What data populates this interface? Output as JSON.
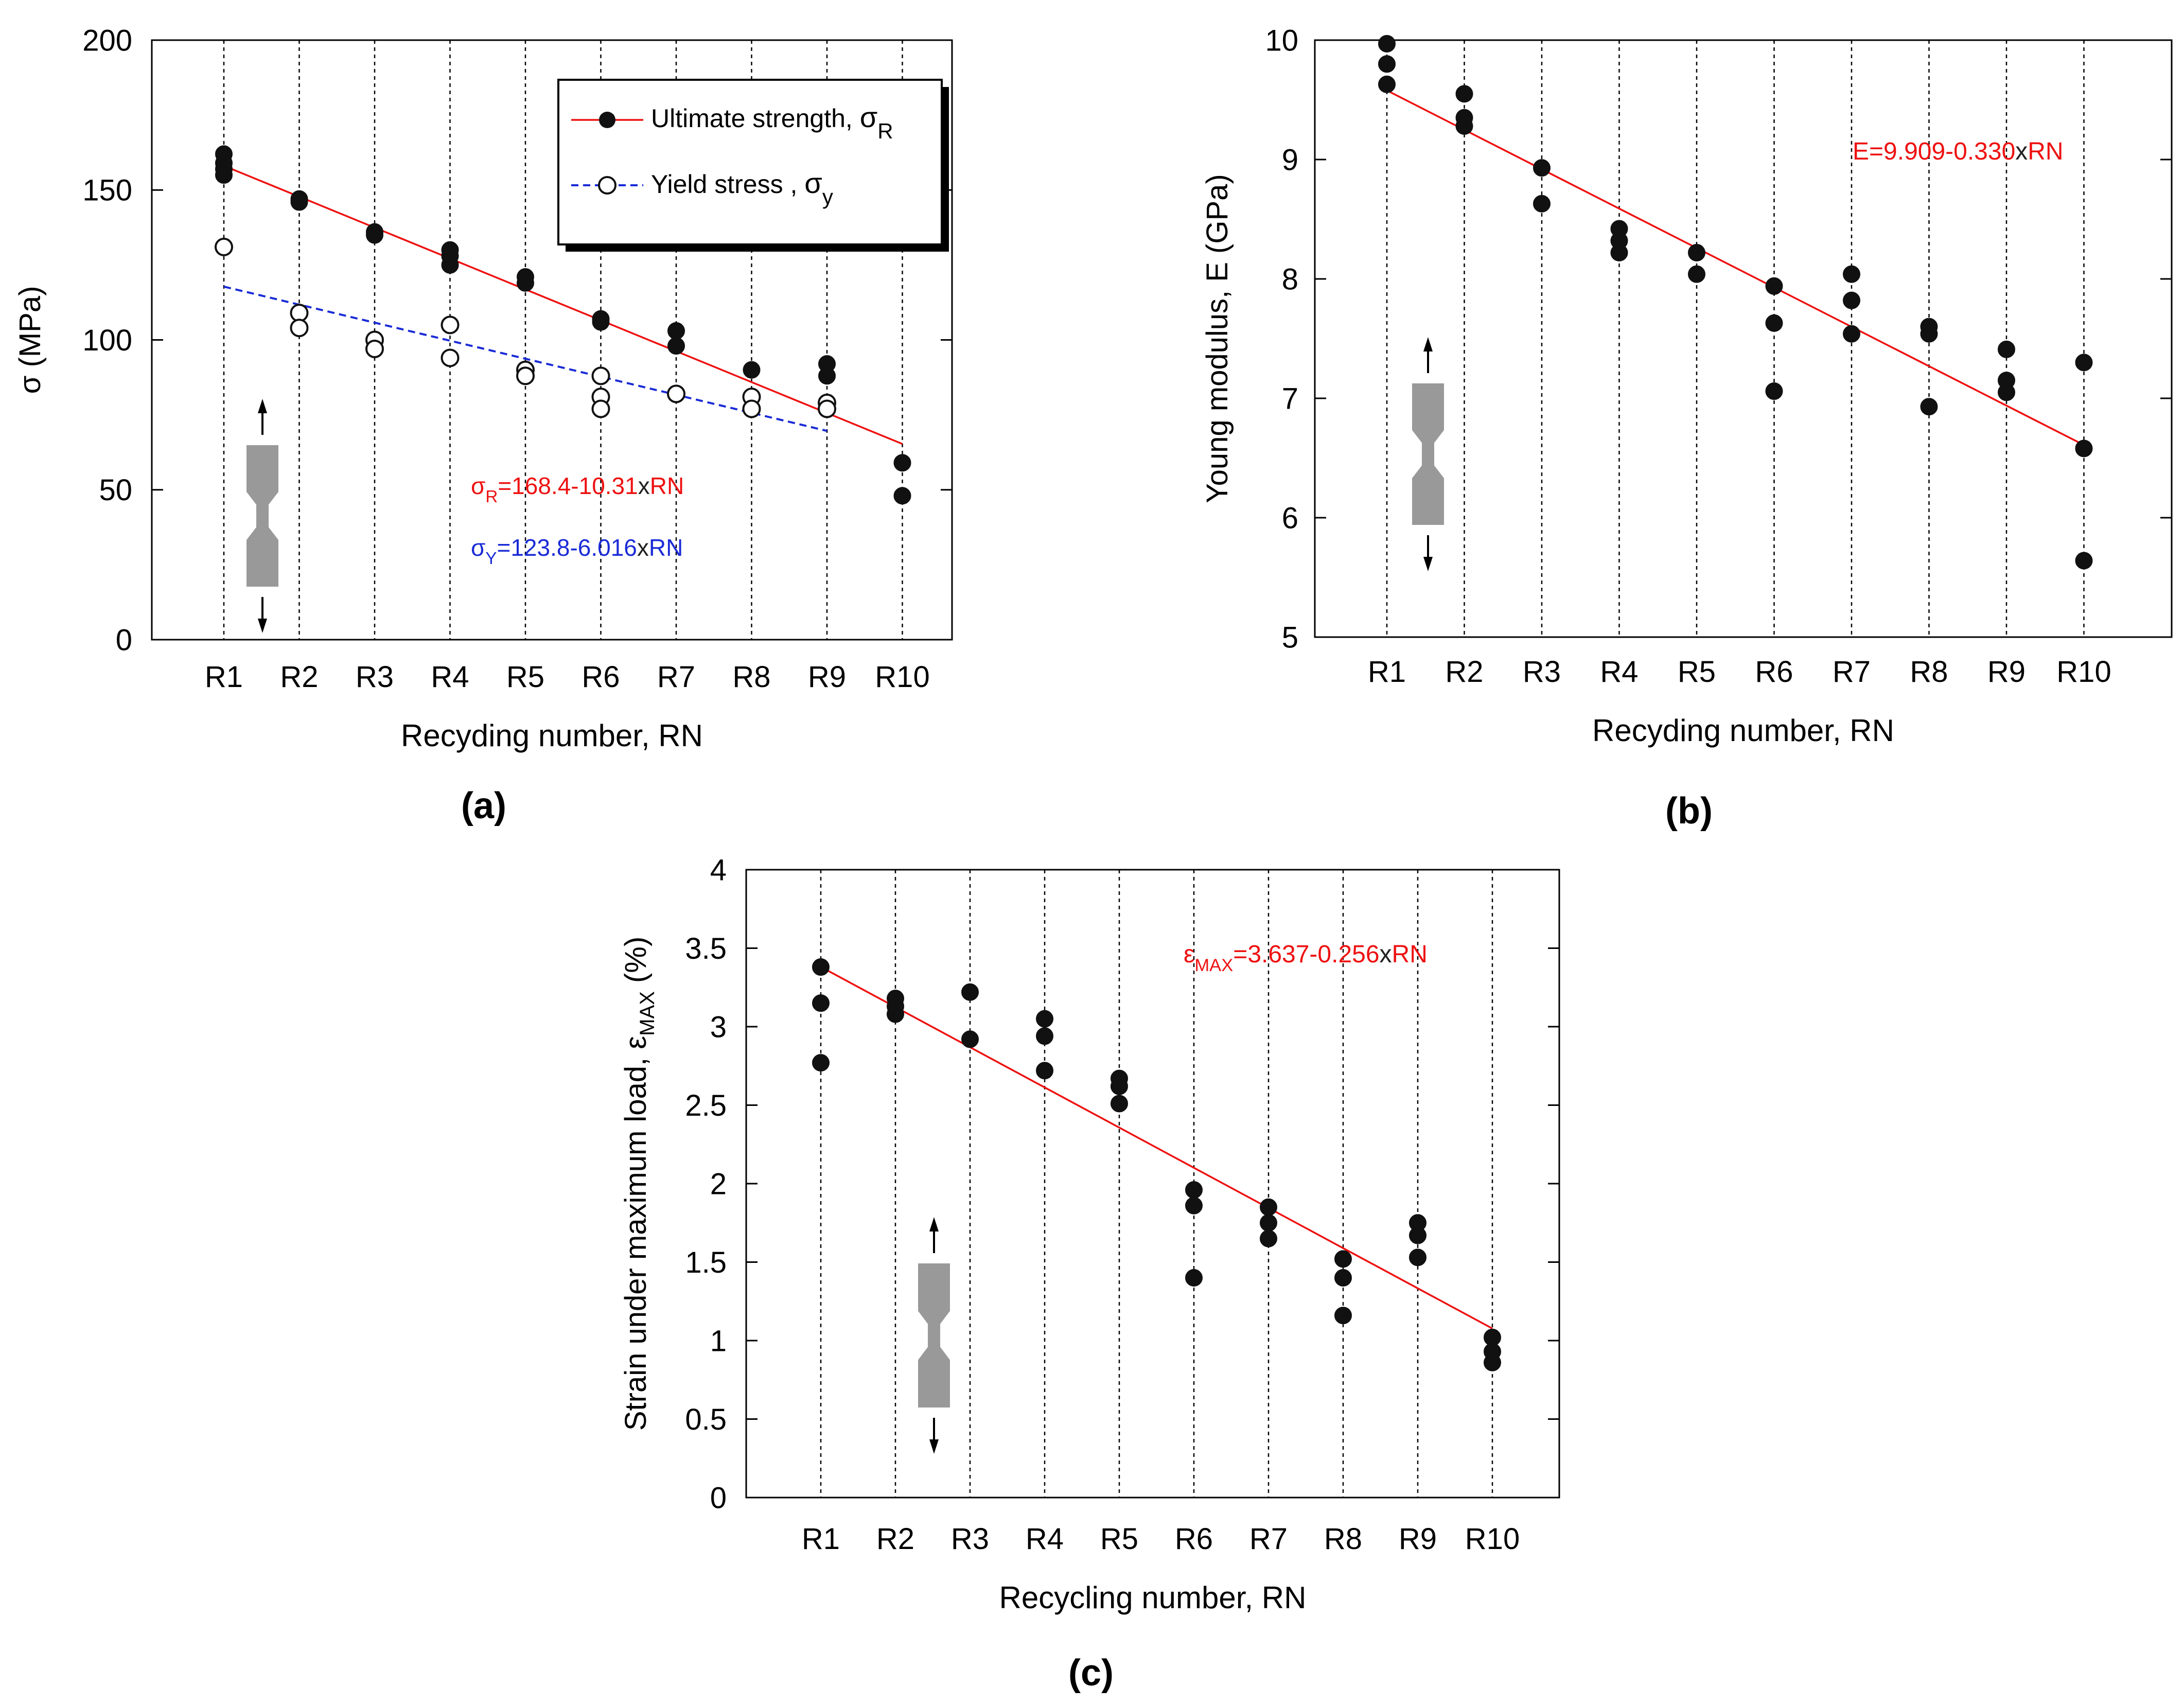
{
  "figure": {
    "colors": {
      "ultimate": "#ee1111",
      "yield": "#1a2bd6",
      "marker": "#111111",
      "specimen": "#999999"
    }
  },
  "chart_data": [
    {
      "panel": "a",
      "caption": "(a)",
      "type": "scatter",
      "categories": [
        "R1",
        "R2",
        "R3",
        "R4",
        "R5",
        "R6",
        "R7",
        "R8",
        "R9",
        "R10"
      ],
      "xlabel": "Recyding number, RN",
      "ylabel": "σ (MPa)",
      "ylim": [
        0,
        200
      ],
      "yticks": [
        0,
        50,
        100,
        150,
        200
      ],
      "grid": "vertical dotted lines at each recycling number",
      "legend": {
        "placement": "top-right",
        "entries": [
          {
            "label": "Ultimate strength,",
            "symbol": "σ",
            "sub": "R"
          },
          {
            "label": "Yield stress ,",
            "symbol": "σ",
            "sub": "y"
          }
        ]
      },
      "series": [
        {
          "name": "Ultimate strength, σR",
          "marker": "filled",
          "points": [
            [
              1,
              162
            ],
            [
              1,
              159
            ],
            [
              1,
              157
            ],
            [
              1,
              155
            ],
            [
              2,
              147
            ],
            [
              2,
              146
            ],
            [
              3,
              136
            ],
            [
              3,
              135
            ],
            [
              4,
              130
            ],
            [
              4,
              128
            ],
            [
              4,
              125
            ],
            [
              5,
              121
            ],
            [
              5,
              119
            ],
            [
              6,
              107
            ],
            [
              6,
              106
            ],
            [
              7,
              103
            ],
            [
              7,
              98
            ],
            [
              8,
              90
            ],
            [
              9,
              92
            ],
            [
              9,
              88
            ],
            [
              10,
              59
            ],
            [
              10,
              48
            ]
          ],
          "fit": {
            "intercept": 168.4,
            "slope": -10.31,
            "style": "solid"
          }
        },
        {
          "name": "Yield stress , σy",
          "marker": "open",
          "points": [
            [
              1,
              131
            ],
            [
              2,
              109
            ],
            [
              2,
              104
            ],
            [
              3,
              100
            ],
            [
              3,
              97
            ],
            [
              4,
              105
            ],
            [
              4,
              94
            ],
            [
              5,
              90
            ],
            [
              5,
              88
            ],
            [
              6,
              88
            ],
            [
              6,
              81
            ],
            [
              6,
              77
            ],
            [
              7,
              82
            ],
            [
              8,
              81
            ],
            [
              8,
              77
            ],
            [
              9,
              79
            ],
            [
              9,
              77
            ]
          ],
          "fit": {
            "intercept": 123.8,
            "slope": -6.016,
            "style": "dashed",
            "x_end": 9
          }
        }
      ],
      "annotations": [
        {
          "pre": "σ",
          "sub": "R",
          "post": "=168.4-10.31",
          "x_char": "x",
          "tail": "RN",
          "color": "red"
        },
        {
          "pre": "σ",
          "sub": "Y",
          "post": "=123.8-6.016",
          "x_char": "x",
          "tail": "RN",
          "color": "blue"
        }
      ]
    },
    {
      "panel": "b",
      "caption": "(b)",
      "type": "scatter",
      "categories": [
        "R1",
        "R2",
        "R3",
        "R4",
        "R5",
        "R6",
        "R7",
        "R8",
        "R9",
        "R10"
      ],
      "xlabel": "Recyding number, RN",
      "ylabel": "Young modulus, E (GPa)",
      "ylim": [
        5,
        10
      ],
      "yticks": [
        5,
        6,
        7,
        8,
        9,
        10
      ],
      "grid": "vertical dotted lines at each recycling number",
      "series": [
        {
          "name": "E",
          "marker": "filled",
          "points": [
            [
              1,
              9.97
            ],
            [
              1,
              9.8
            ],
            [
              1,
              9.63
            ],
            [
              2,
              9.55
            ],
            [
              2,
              9.35
            ],
            [
              2,
              9.28
            ],
            [
              3,
              8.93
            ],
            [
              3,
              8.63
            ],
            [
              4,
              8.42
            ],
            [
              4,
              8.32
            ],
            [
              4,
              8.22
            ],
            [
              5,
              8.22
            ],
            [
              5,
              8.04
            ],
            [
              6,
              7.94
            ],
            [
              6,
              7.63
            ],
            [
              6,
              7.06
            ],
            [
              7,
              8.04
            ],
            [
              7,
              7.82
            ],
            [
              7,
              7.54
            ],
            [
              8,
              7.6
            ],
            [
              8,
              7.54
            ],
            [
              8,
              6.93
            ],
            [
              9,
              7.41
            ],
            [
              9,
              7.15
            ],
            [
              9,
              7.05
            ],
            [
              10,
              7.3
            ],
            [
              10,
              6.58
            ],
            [
              10,
              5.64
            ]
          ],
          "fit": {
            "intercept": 9.909,
            "slope": -0.33,
            "style": "solid"
          }
        }
      ],
      "annotations": [
        {
          "pre": "E",
          "sub": "",
          "post": "=9.909-0.330",
          "x_char": "x",
          "tail": "RN",
          "color": "red"
        }
      ]
    },
    {
      "panel": "c",
      "caption": "(c)",
      "type": "scatter",
      "categories": [
        "R1",
        "R2",
        "R3",
        "R4",
        "R5",
        "R6",
        "R7",
        "R8",
        "R9",
        "R10"
      ],
      "xlabel": "Recycling number, RN",
      "ylabel": "Strain under maximum load,",
      "ylabel_symbol": "ε",
      "ylabel_sub": "MAX",
      "ylabel_unit": "(%)",
      "ylim": [
        0,
        4
      ],
      "yticks": [
        "0",
        "0.5",
        "1",
        "1.5",
        "2",
        "2.5",
        "3",
        "3.5",
        "4"
      ],
      "grid": "vertical dotted lines at each recycling number",
      "series": [
        {
          "name": "εMAX",
          "marker": "filled",
          "points": [
            [
              1,
              3.38
            ],
            [
              1,
              3.15
            ],
            [
              1,
              2.77
            ],
            [
              2,
              3.18
            ],
            [
              2,
              3.13
            ],
            [
              2,
              3.08
            ],
            [
              3,
              3.22
            ],
            [
              3,
              2.92
            ],
            [
              4,
              3.05
            ],
            [
              4,
              2.94
            ],
            [
              4,
              2.72
            ],
            [
              5,
              2.67
            ],
            [
              5,
              2.62
            ],
            [
              5,
              2.51
            ],
            [
              6,
              1.96
            ],
            [
              6,
              1.86
            ],
            [
              6,
              1.4
            ],
            [
              7,
              1.85
            ],
            [
              7,
              1.75
            ],
            [
              7,
              1.65
            ],
            [
              8,
              1.52
            ],
            [
              8,
              1.4
            ],
            [
              8,
              1.16
            ],
            [
              9,
              1.75
            ],
            [
              9,
              1.67
            ],
            [
              9,
              1.53
            ],
            [
              10,
              1.02
            ],
            [
              10,
              0.93
            ],
            [
              10,
              0.86
            ]
          ],
          "fit": {
            "intercept": 3.637,
            "slope": -0.256,
            "style": "solid"
          }
        }
      ],
      "annotations": [
        {
          "pre": "ε",
          "sub": "MAX",
          "post": "=3.637-0.256",
          "x_char": "x",
          "tail": "RN",
          "color": "red"
        }
      ]
    }
  ]
}
